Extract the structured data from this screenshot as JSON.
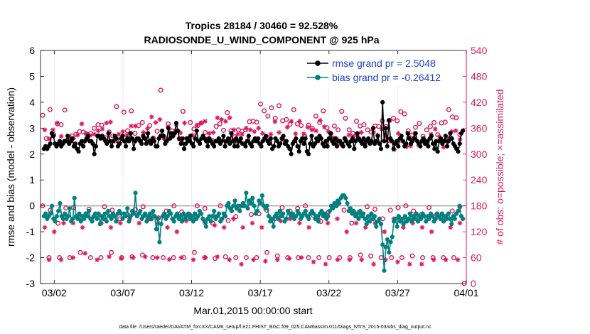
{
  "chart_data": {
    "type": "line",
    "title_line1": "Tropics 28184 / 30460 = 92.528%",
    "title_line2": "RADIOSONDE_U_WIND_COMPONENT @ 925 hPa",
    "xlabel": "Mar.01,2015 00:00:00 start",
    "ylabel_left": "rmse and bias (model - observation)",
    "ylabel_right": "# of obs: o=possible; ×=assimilated",
    "footer": "data file: /Users/raeder/DAI/ATM_forcXX/CAM6_setup/f.e21.FHIST_BGC.f09_025.CAM6assim.011/Diags_NTrS_2015-03/obs_diag_output.nc",
    "x_range_days": [
      0.5,
      31.5
    ],
    "x_ticks": [
      {
        "day": 1.5,
        "label": "03/02"
      },
      {
        "day": 6.5,
        "label": "03/07"
      },
      {
        "day": 11.5,
        "label": "03/12"
      },
      {
        "day": 16.5,
        "label": "03/17"
      },
      {
        "day": 21.5,
        "label": "03/22"
      },
      {
        "day": 26.5,
        "label": "03/27"
      },
      {
        "day": 31.5,
        "label": "04/01"
      }
    ],
    "ylim_left": [
      -3,
      6
    ],
    "y_ticks_left": [
      -3,
      -2,
      -1,
      0,
      1,
      2,
      3,
      4,
      5,
      6
    ],
    "ylim_right": [
      0,
      540
    ],
    "y_ticks_right": [
      0,
      60,
      120,
      180,
      240,
      300,
      360,
      420,
      480,
      540
    ],
    "legend": [
      {
        "label": "rmse grand pr = 2.5048",
        "color": "#000000"
      },
      {
        "label": "bias grand pr = -0.26412",
        "color": "#00807f"
      }
    ],
    "colors": {
      "rmse": "#000000",
      "bias": "#00807f",
      "obs": "#d81b60",
      "left_axis": "#000000",
      "right_axis": "#d81b60",
      "legend_text": "#1a3fd9",
      "zero_line": "#aaaaaa"
    },
    "series": [
      {
        "name": "rmse",
        "axis": "left",
        "values": [
          2.2,
          2.3,
          2.2,
          2.3,
          2.4,
          2.8,
          2.7,
          2.4,
          2.3,
          2.4,
          2.5,
          2.3,
          2.4,
          2.5,
          2.5,
          2.7,
          2.4,
          2.5,
          2.6,
          2.3,
          2.4,
          2.2,
          2.1,
          2.4,
          2.5,
          2.3,
          2.5,
          2.6,
          2.7,
          2.5,
          2.5,
          2.4,
          2.0,
          2.3,
          2.7,
          2.7,
          2.6,
          2.7,
          2.6,
          2.5,
          2.4,
          2.8,
          2.5,
          2.3,
          2.5,
          2.7,
          2.6,
          2.3,
          2.4,
          2.6,
          2.7,
          2.5,
          2.3,
          2.6,
          2.5,
          2.8,
          2.6,
          2.2,
          2.5,
          2.6,
          2.6,
          2.5,
          2.4,
          2.7,
          2.6,
          2.4,
          2.8,
          2.5,
          2.4,
          2.6,
          2.5,
          2.3,
          2.3,
          2.6,
          2.7,
          2.9,
          2.7,
          2.4,
          2.5,
          3.0,
          2.6,
          2.8,
          2.7,
          2.8,
          3.2,
          2.9,
          2.6,
          2.4,
          2.6,
          2.2,
          2.4,
          2.6,
          2.5,
          2.7,
          2.4,
          2.3,
          2.6,
          2.9,
          2.5,
          2.4,
          2.6,
          2.7,
          2.6,
          2.5,
          2.3,
          2.6,
          2.5,
          2.4,
          2.3,
          2.5,
          2.5,
          2.6,
          2.4,
          2.5,
          2.7,
          2.3,
          2.5,
          2.6,
          2.4,
          2.8,
          2.5,
          2.3,
          2.6,
          2.3,
          2.5,
          2.6,
          2.4,
          2.4,
          2.3,
          2.5,
          2.7,
          2.4,
          2.3,
          2.5,
          2.6,
          2.5,
          2.6,
          2.4,
          2.3,
          2.5,
          2.6,
          2.7,
          2.5,
          2.4,
          2.6,
          2.2,
          2.3,
          2.6,
          2.5,
          2.3,
          2.4,
          2.6,
          2.7,
          2.4,
          2.5,
          2.3,
          2.2,
          2.0,
          2.4,
          2.5,
          2.6,
          2.3,
          2.1,
          2.5,
          2.6,
          2.4,
          2.6,
          2.1,
          2.0,
          2.4,
          2.7,
          2.3,
          2.4,
          2.6,
          2.5,
          2.7,
          2.6,
          2.4,
          2.3,
          2.5,
          2.3,
          2.6,
          2.8,
          2.5,
          2.4,
          2.6,
          2.3,
          2.5,
          2.5,
          2.4,
          2.3,
          2.6,
          2.5,
          2.4,
          2.3,
          2.5,
          2.6,
          2.2,
          2.5,
          2.8,
          2.6,
          2.5,
          2.4,
          2.6,
          2.3,
          2.5,
          2.6,
          2.4,
          2.5,
          3.0,
          2.4,
          2.5,
          2.7,
          2.4,
          2.2,
          4.0,
          2.5,
          3.0,
          2.3,
          3.3,
          2.6,
          2.5,
          2.2,
          2.4,
          2.5,
          2.3,
          2.6,
          2.7,
          2.5,
          2.3,
          2.4,
          2.8,
          2.6,
          2.4,
          2.5,
          2.6,
          2.8,
          2.5,
          2.4,
          2.3,
          2.5,
          2.6,
          2.4,
          2.5,
          2.3,
          2.6,
          2.7,
          2.4,
          2.2,
          2.5,
          2.1,
          2.5,
          2.6,
          2.4,
          2.5,
          2.7,
          2.3,
          2.5,
          2.8,
          2.6,
          2.4,
          2.3,
          2.2,
          2.1,
          2.4,
          2.8,
          2.9
        ]
      },
      {
        "name": "bias",
        "axis": "left",
        "values": [
          -0.4,
          -0.3,
          -0.5,
          -0.4,
          -0.3,
          0.0,
          -0.5,
          -0.6,
          -0.4,
          -0.2,
          0.1,
          -0.4,
          -0.5,
          -0.3,
          -0.5,
          -0.4,
          -0.1,
          -0.6,
          -0.5,
          0.3,
          -0.4,
          -0.5,
          -0.3,
          -0.6,
          -0.4,
          -0.5,
          -0.3,
          -0.4,
          -0.2,
          -0.5,
          -0.6,
          -0.4,
          -0.3,
          -0.5,
          -0.3,
          -0.7,
          -0.4,
          -0.5,
          -0.3,
          -0.6,
          -0.2,
          -0.4,
          -0.5,
          -0.3,
          -0.4,
          -0.6,
          -0.3,
          -0.2,
          -0.3,
          -0.5,
          -0.3,
          -0.4,
          -0.1,
          -0.6,
          -0.4,
          -0.2,
          -0.3,
          0.5,
          -0.4,
          -0.3,
          -0.2,
          -0.5,
          -0.4,
          -0.3,
          -0.6,
          -0.4,
          -0.3,
          -0.5,
          -0.2,
          -0.4,
          -0.9,
          -0.5,
          -1.4,
          -0.7,
          -0.4,
          -0.3,
          -0.5,
          -0.4,
          -0.2,
          -0.3,
          -0.5,
          -0.6,
          -0.4,
          -0.3,
          -0.5,
          -0.4,
          -0.6,
          -0.3,
          -0.5,
          -0.4,
          -0.3,
          -0.5,
          -0.4,
          -0.6,
          -0.3,
          -0.5,
          -0.4,
          -0.2,
          -0.3,
          -0.5,
          -0.6,
          -0.8,
          -0.5,
          -0.4,
          -0.6,
          -0.4,
          -0.2,
          -0.5,
          -0.4,
          -0.3,
          -0.6,
          -0.5,
          -0.3,
          -0.4,
          0.0,
          0.1,
          -0.1,
          -0.2,
          0.0,
          0.2,
          -0.1,
          0.0,
          -0.2,
          0.0,
          0.1,
          0.0,
          0.5,
          -0.1,
          0.2,
          0.1,
          0.3,
          0.0,
          -0.3,
          -0.2,
          0.2,
          0.1,
          0.4,
          0.0,
          -0.1,
          0.0,
          -0.4,
          -0.6,
          -0.5,
          -0.8,
          -0.4,
          -0.3,
          -0.5,
          -0.2,
          -0.4,
          -0.3,
          -0.6,
          -0.5,
          -0.2,
          -0.3,
          -0.4,
          -0.3,
          -0.5,
          -0.4,
          -0.2,
          -0.3,
          -0.5,
          -0.4,
          -0.3,
          -0.2,
          -0.4,
          -0.5,
          -0.3,
          -0.2,
          -0.3,
          -0.5,
          -0.4,
          -0.6,
          -0.3,
          -0.2,
          -0.4,
          -0.3,
          -0.5,
          -0.4,
          -0.2,
          0.0,
          -0.1,
          0.1,
          0.0,
          0.2,
          0.1,
          0.3,
          0.4,
          0.4,
          0.3,
          0.1,
          -0.2,
          -0.1,
          -0.3,
          -0.2,
          -0.4,
          -0.3,
          -0.5,
          -0.2,
          -0.4,
          -0.3,
          -0.5,
          -0.7,
          -0.4,
          -0.6,
          -0.3,
          -0.5,
          -0.4,
          -0.8,
          -0.6,
          -0.5,
          -0.7,
          -1.5,
          -2.5,
          -1.6,
          -1.3,
          -1.8,
          -1.4,
          -1.2,
          -0.6,
          -0.5,
          -0.8,
          -0.4,
          -0.6,
          -0.5,
          -0.7,
          -0.4,
          -0.6,
          -0.5,
          -0.3,
          -0.6,
          -0.4,
          -0.5,
          -0.3,
          -0.6,
          -0.4,
          -0.5,
          -0.3,
          -0.4,
          -0.6,
          -0.4,
          -0.5,
          -0.3,
          -0.4,
          -0.6,
          -0.5,
          -0.3,
          -0.4,
          -0.5,
          -0.3,
          -0.6,
          -0.4,
          -0.5,
          -0.3,
          -0.5,
          -0.7,
          -0.4,
          -0.5,
          -0.3,
          -0.2,
          0.0,
          -0.4,
          -0.5
        ]
      }
    ],
    "obs_possible": {
      "axis": "right",
      "marker": "circle",
      "values": [
        390,
        336,
        403,
        345,
        370,
        368,
        402,
        340,
        342,
        346,
        352,
        351,
        346,
        348,
        360,
        368,
        367,
        338,
        351,
        342,
        410,
        330,
        397,
        354,
        400,
        348,
        366,
        373,
        344,
        366,
        337,
        353,
        448,
        336,
        370,
        354,
        353,
        335,
        399,
        336,
        373,
        358,
        366,
        372,
        350,
        336,
        331,
        364,
        370,
        355,
        396,
        354,
        340,
        356,
        353,
        356,
        375,
        376,
        374,
        416,
        400,
        388,
        407,
        383,
        412,
        377,
        380,
        369,
        403,
        370,
        366,
        341,
        367,
        360,
        388,
        373,
        400,
        361,
        348,
        365,
        356,
        399,
        383,
        356,
        348,
        376,
        365,
        368,
        356,
        351,
        365,
        364,
        377,
        364,
        378,
        383,
        377,
        398,
        393,
        354,
        344,
        362,
        371,
        341,
        356,
        364,
        373,
        345,
        372,
        374,
        403,
        386,
        384,
        345
      ],
      "extra_low_group": [
        60,
        60,
        60,
        72,
        60,
        60,
        72,
        60,
        62,
        66,
        60,
        60,
        60,
        60,
        72,
        60,
        58,
        62,
        60,
        60,
        60,
        72,
        64,
        60,
        60,
        60,
        60,
        60,
        60,
        60,
        66,
        64,
        60,
        60,
        60,
        64,
        60,
        60,
        60,
        60,
        0
      ],
      "mid_group": [
        180,
        170,
        140,
        175,
        176,
        150,
        172,
        160,
        178,
        170,
        150,
        160,
        172,
        178,
        150,
        152,
        168,
        180,
        166,
        160,
        180,
        174,
        140,
        180,
        146,
        155,
        180,
        160,
        162,
        170,
        150,
        176,
        168,
        174,
        180,
        158,
        144,
        166,
        180,
        170,
        140,
        166,
        178,
        172,
        150,
        170,
        176,
        180,
        168,
        160,
        176,
        160,
        150,
        168,
        178
      ]
    },
    "obs_assimilated": {
      "axis": "right",
      "marker": "asterisk",
      "values": [
        356,
        335,
        356,
        372,
        341,
        330,
        340,
        336,
        344,
        370,
        348,
        343,
        346,
        354,
        358,
        372,
        374,
        330,
        346,
        352,
        344,
        365,
        365,
        334,
        350,
        359,
        386,
        373,
        380,
        337,
        363,
        340,
        369,
        349,
        372,
        334,
        344,
        367,
        372,
        376,
        348,
        350,
        384,
        380,
        376,
        384,
        356,
        346,
        346,
        360,
        356,
        352,
        360,
        348,
        340,
        346,
        375,
        350,
        333,
        362,
        376,
        347,
        376,
        347,
        362,
        356,
        354,
        378,
        363,
        352,
        338,
        336,
        322,
        337,
        344,
        341,
        344,
        350,
        326,
        328,
        351,
        344,
        358,
        341,
        330,
        310,
        348,
        330,
        317,
        319,
        348,
        320,
        334,
        322,
        346,
        358,
        340,
        316,
        338,
        352,
        354,
        334
      ],
      "low_group": [
        55,
        55,
        60,
        70,
        55,
        62,
        58,
        60,
        62,
        60,
        56,
        60,
        55,
        60,
        62,
        55,
        45,
        55,
        52,
        55,
        58,
        60,
        50,
        45,
        55,
        55,
        55,
        45,
        55,
        50,
        45,
        45,
        55,
        55,
        55
      ],
      "mid_group": [
        130,
        120,
        140,
        140,
        130,
        150,
        140,
        130,
        140,
        150,
        140,
        150,
        140,
        130,
        120,
        145,
        150,
        140,
        135,
        130,
        150,
        130,
        140,
        130,
        150,
        145,
        150,
        140,
        130,
        150,
        140,
        150,
        120,
        140,
        130,
        140,
        120,
        150,
        130,
        140,
        130,
        120,
        150,
        130,
        140
      ]
    }
  }
}
